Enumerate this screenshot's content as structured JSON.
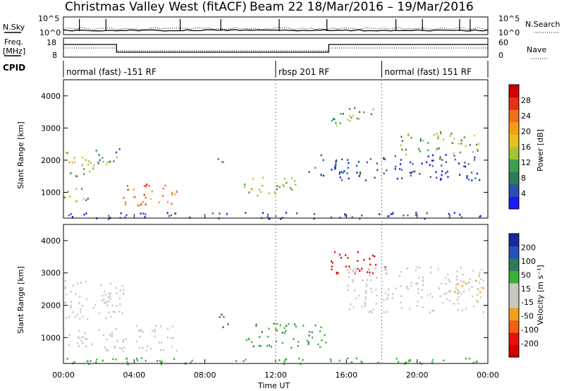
{
  "header": {
    "title_left": "Christmas Valley West (fitACF)",
    "title_right": "Beam 22  18/Mar/2016 – 19/Mar/2016"
  },
  "status_panels": {
    "nsky_label": "N.Sky",
    "nsearch_label": "N.Search",
    "freq_label_line1": "Freq.",
    "freq_label_line2": "[MHz]",
    "nave_label": "Nave",
    "cpid_label": "CPID",
    "log_ticks_left": [
      "10^5",
      "10^0"
    ],
    "log_ticks_right": [
      "10^5",
      "10^0"
    ],
    "freq_ticks": [
      "18",
      "8"
    ],
    "nave_ticks": [
      "60",
      "0"
    ],
    "cpid_segments": [
      {
        "label": "normal (fast) -151 RF",
        "start_hr": 0.0
      },
      {
        "label": "rbsp 201 RF",
        "start_hr": 12.0
      },
      {
        "label": "normal (fast) 151 RF",
        "start_hr": 18.0
      }
    ]
  },
  "colorbars": {
    "power": {
      "label": "Power [dB]",
      "ticks": [
        "4",
        "8",
        "12",
        "16",
        "20",
        "24",
        "28"
      ],
      "colors": [
        "#1a1aff",
        "#2a4fb0",
        "#2f7a5a",
        "#3aa050",
        "#a5c23a",
        "#e8c020",
        "#f0a018",
        "#f07020",
        "#e83018",
        "#d00000"
      ]
    },
    "velocity": {
      "label": "Velocity [m s⁻¹]",
      "ticks": [
        "200",
        "100",
        "50",
        "15",
        "-15",
        "-50",
        "-100",
        "-200"
      ],
      "colors": [
        "#1428a0",
        "#2850b8",
        "#2f7a5a",
        "#3ab03a",
        "#c8c8c0",
        "#c8c8c0",
        "#f0a018",
        "#f06010",
        "#e81010",
        "#d00000"
      ]
    }
  },
  "axes": {
    "ylabel": "Slant Range [km]",
    "xlabel": "Time UT",
    "x_ticks": [
      "00:00",
      "04:00",
      "08:00",
      "12:00",
      "16:00",
      "20:00",
      "00:00"
    ],
    "y_ticks": [
      "1000",
      "2000",
      "3000",
      "4000"
    ]
  },
  "chart_data": {
    "type": "heatmap",
    "x_range_hours": [
      0,
      24
    ],
    "y_range_km": [
      200,
      4500
    ],
    "panels": [
      {
        "name": "Power",
        "unit": "dB",
        "regions": [
          {
            "t": [
              0.0,
              2.5
            ],
            "r": [
              1700,
              2300
            ],
            "v": 18
          },
          {
            "t": [
              0.0,
              1.5
            ],
            "r": [
              1400,
              1700
            ],
            "v": 12
          },
          {
            "t": [
              0.0,
              1.5
            ],
            "r": [
              700,
              1200
            ],
            "v": 14
          },
          {
            "t": [
              1.8,
              3.4
            ],
            "r": [
              1950,
              2450
            ],
            "v": 10
          },
          {
            "t": [
              3.2,
              6.4
            ],
            "r": [
              600,
              1300
            ],
            "v": 24
          },
          {
            "t": [
              8.7,
              9.3
            ],
            "r": [
              1900,
              2200
            ],
            "v": 12
          },
          {
            "t": [
              10.2,
              13.2
            ],
            "r": [
              900,
              1500
            ],
            "v": 16
          },
          {
            "t": [
              13.8,
              14.4
            ],
            "r": [
              1600,
              1800
            ],
            "v": 8
          },
          {
            "t": [
              15.0,
              17.5
            ],
            "r": [
              3100,
              3700
            ],
            "v": 14
          },
          {
            "t": [
              14.5,
              23.5
            ],
            "r": [
              1400,
              2200
            ],
            "v": 6
          },
          {
            "t": [
              19.0,
              23.5
            ],
            "r": [
              2200,
              2900
            ],
            "v": 14
          },
          {
            "t": [
              0.0,
              24.0
            ],
            "r": [
              200,
              400
            ],
            "v": 6
          }
        ]
      },
      {
        "name": "Velocity",
        "unit": "m s-1",
        "regions": [
          {
            "t": [
              0.0,
              3.4
            ],
            "r": [
              1600,
              2800
            ],
            "v": 0
          },
          {
            "t": [
              2.0,
              3.2
            ],
            "r": [
              1950,
              2400
            ],
            "v": -40
          },
          {
            "t": [
              0.0,
              2.0
            ],
            "r": [
              700,
              1300
            ],
            "v": 0
          },
          {
            "t": [
              2.2,
              6.4
            ],
            "r": [
              600,
              1400
            ],
            "v": 0
          },
          {
            "t": [
              6.0,
              6.4
            ],
            "r": [
              700,
              1100
            ],
            "v": -40
          },
          {
            "t": [
              8.7,
              9.3
            ],
            "r": [
              1300,
              1900
            ],
            "v": 100
          },
          {
            "t": [
              10.3,
              14.8
            ],
            "r": [
              700,
              1500
            ],
            "v": 40
          },
          {
            "t": [
              15.0,
              18.2
            ],
            "r": [
              3000,
              3700
            ],
            "v": -250
          },
          {
            "t": [
              16.0,
              23.8
            ],
            "r": [
              1800,
              3200
            ],
            "v": 0
          },
          {
            "t": [
              22.0,
              23.8
            ],
            "r": [
              2300,
              2800
            ],
            "v": -60
          },
          {
            "t": [
              0.0,
              24.0
            ],
            "r": [
              200,
              400
            ],
            "v": 30
          }
        ]
      }
    ]
  }
}
